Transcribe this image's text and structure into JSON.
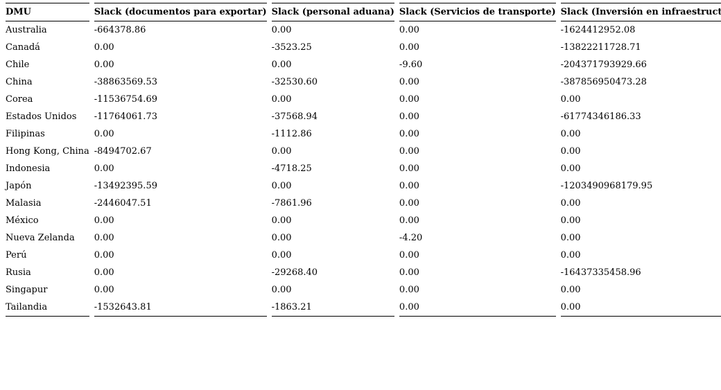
{
  "page": {
    "background_color": "#ffffff",
    "text_color": "#000000",
    "rule_color": "#000000"
  },
  "table": {
    "columns": [
      "DMU",
      "Slack (documentos para exportar)",
      "Slack (personal aduana)",
      "Slack (Servicios de transporte)",
      "Slack (Inversión en infraestructura)"
    ],
    "rows": [
      {
        "dmu": "Australia",
        "values": [
          "-664378.86",
          "0.00",
          "0.00",
          "-1624412952.08"
        ]
      },
      {
        "dmu": "Canadá",
        "values": [
          "0.00",
          "-3523.25",
          "0.00",
          "-13822211728.71"
        ]
      },
      {
        "dmu": "Chile",
        "values": [
          "0.00",
          "0.00",
          "-9.60",
          "-204371793929.66"
        ]
      },
      {
        "dmu": "China",
        "values": [
          "-38863569.53",
          "-32530.60",
          "0.00",
          "-387856950473.28"
        ]
      },
      {
        "dmu": "Corea",
        "values": [
          "-11536754.69",
          "0.00",
          "0.00",
          "0.00"
        ]
      },
      {
        "dmu": "Estados Unidos",
        "values": [
          "-11764061.73",
          "-37568.94",
          "0.00",
          "-61774346186.33"
        ]
      },
      {
        "dmu": "Filipinas",
        "values": [
          "0.00",
          "-1112.86",
          "0.00",
          "0.00"
        ]
      },
      {
        "dmu": "Hong Kong, China",
        "values": [
          "-8494702.67",
          "0.00",
          "0.00",
          "0.00"
        ]
      },
      {
        "dmu": "Indonesia",
        "values": [
          "0.00",
          "-4718.25",
          "0.00",
          "0.00"
        ]
      },
      {
        "dmu": "Japón",
        "values": [
          "-13492395.59",
          "0.00",
          "0.00",
          "-1203490968179.95"
        ]
      },
      {
        "dmu": "Malasia",
        "values": [
          "-2446047.51",
          "-7861.96",
          "0.00",
          "0.00"
        ]
      },
      {
        "dmu": "México",
        "values": [
          "0.00",
          "0.00",
          "0.00",
          "0.00"
        ]
      },
      {
        "dmu": "Nueva Zelanda",
        "values": [
          "0.00",
          "0.00",
          "-4.20",
          "0.00"
        ]
      },
      {
        "dmu": "Perú",
        "values": [
          "0.00",
          "0.00",
          "0.00",
          "0.00"
        ]
      },
      {
        "dmu": "Rusia",
        "values": [
          "0.00",
          "-29268.40",
          "0.00",
          "-16437335458.96"
        ]
      },
      {
        "dmu": "Singapur",
        "values": [
          "0.00",
          "0.00",
          "0.00",
          "0.00"
        ]
      },
      {
        "dmu": "Tailandia",
        "values": [
          "-1532643.81",
          "-1863.21",
          "0.00",
          "0.00"
        ]
      }
    ]
  }
}
